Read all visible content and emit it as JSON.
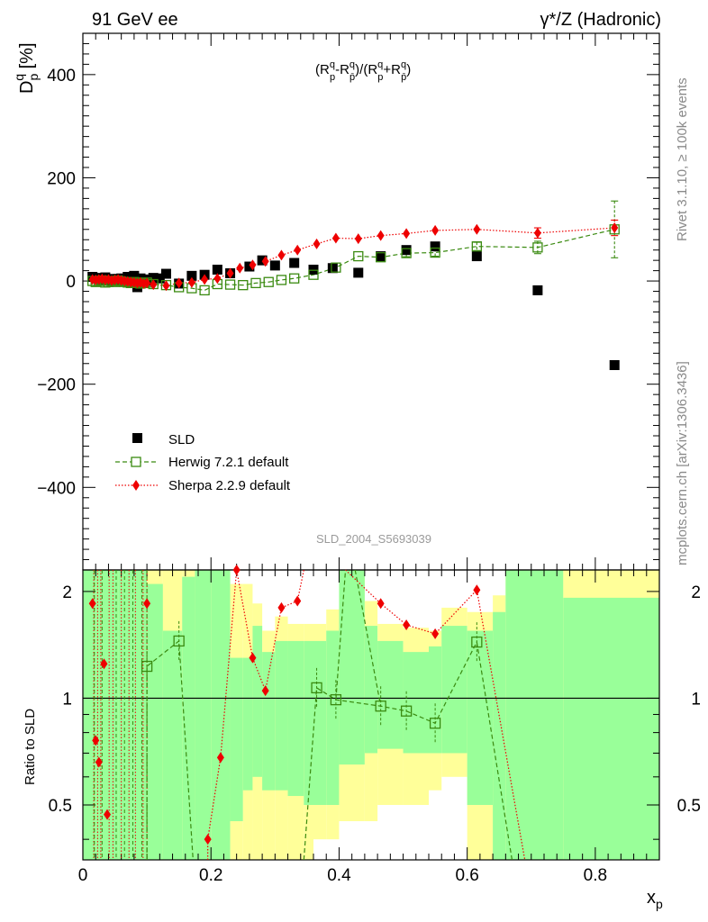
{
  "header": {
    "left": "91 GeV ee",
    "right": "γ*/Z (Hadronic)"
  },
  "side": {
    "rivet": "Rivet 3.1.10, ≥ 100k events",
    "mcplots": "mcplots.cern.ch [arXiv:1306.3436]"
  },
  "chart_data": {
    "type": "scatter",
    "title": "(R_p^q - R_pbar^q)/(R_p^q + R_pbar^q)",
    "xlabel": "x_p",
    "ylabel": "D_p^q [%]",
    "ratio_ylabel": "Ratio to SLD",
    "watermark": "SLD_2004_S5693039",
    "xlim": [
      0,
      0.9
    ],
    "ylim": [
      -560,
      480
    ],
    "ratio_ylim": [
      0.35,
      2.3
    ],
    "xticks": [
      "0",
      "0.2",
      "0.4",
      "0.6",
      "0.8"
    ],
    "yticks": [
      "−400",
      "−200",
      "0",
      "200",
      "400"
    ],
    "ratio_yticks": [
      "0.5",
      "1",
      "2"
    ],
    "legend": {
      "placement": "bottom-left",
      "entries": [
        "SLD",
        "Herwig 7.2.1 default",
        "Sherpa 2.2.9 default"
      ]
    },
    "series": [
      {
        "name": "SLD",
        "color": "#000000",
        "x": [
          0.015,
          0.02,
          0.025,
          0.03,
          0.035,
          0.04,
          0.045,
          0.05,
          0.055,
          0.06,
          0.065,
          0.07,
          0.075,
          0.08,
          0.085,
          0.09,
          0.095,
          0.1,
          0.105,
          0.11,
          0.12,
          0.13,
          0.15,
          0.17,
          0.19,
          0.21,
          0.23,
          0.26,
          0.28,
          0.3,
          0.33,
          0.36,
          0.39,
          0.43,
          0.465,
          0.505,
          0.55,
          0.615,
          0.71,
          0.83
        ],
        "y": [
          8,
          5,
          6,
          3,
          7,
          2,
          4,
          1,
          4,
          5,
          2,
          8,
          6,
          10,
          -12,
          5,
          3,
          2,
          0,
          6,
          5,
          14,
          -5,
          10,
          12,
          22,
          15,
          28,
          40,
          30,
          35,
          22,
          25,
          16,
          48,
          60,
          67,
          48,
          -18,
          -163
        ]
      },
      {
        "name": "Herwig 7.2.1 default",
        "color": "#3a8a10",
        "x": [
          0.015,
          0.02,
          0.025,
          0.03,
          0.035,
          0.04,
          0.045,
          0.05,
          0.055,
          0.06,
          0.065,
          0.07,
          0.075,
          0.08,
          0.085,
          0.09,
          0.095,
          0.1,
          0.11,
          0.13,
          0.15,
          0.17,
          0.19,
          0.21,
          0.23,
          0.25,
          0.27,
          0.29,
          0.31,
          0.33,
          0.36,
          0.395,
          0.43,
          0.465,
          0.505,
          0.55,
          0.615,
          0.71,
          0.83
        ],
        "y": [
          0,
          -2,
          0,
          1,
          -3,
          -2,
          0,
          -2,
          1,
          -1,
          -2,
          -3,
          -4,
          -2,
          -3,
          -5,
          -4,
          -3,
          -6,
          -8,
          -12,
          -14,
          -18,
          -6,
          -7,
          -8,
          -4,
          -2,
          2,
          5,
          12,
          26,
          48,
          46,
          54,
          55,
          67,
          65,
          100
        ],
        "yerr": [
          3,
          3,
          3,
          3,
          3,
          3,
          3,
          3,
          3,
          3,
          3,
          3,
          3,
          3,
          3,
          3,
          3,
          3,
          3,
          3,
          4,
          4,
          4,
          4,
          4,
          4,
          5,
          5,
          5,
          5,
          6,
          6,
          6,
          7,
          7,
          7,
          8,
          12,
          55
        ]
      },
      {
        "name": "Sherpa 2.2.9 default",
        "color": "#ee0000",
        "x": [
          0.015,
          0.02,
          0.025,
          0.03,
          0.035,
          0.04,
          0.045,
          0.05,
          0.055,
          0.06,
          0.065,
          0.07,
          0.075,
          0.08,
          0.085,
          0.09,
          0.095,
          0.1,
          0.11,
          0.13,
          0.15,
          0.17,
          0.19,
          0.21,
          0.23,
          0.245,
          0.265,
          0.285,
          0.31,
          0.335,
          0.365,
          0.395,
          0.43,
          0.465,
          0.505,
          0.55,
          0.615,
          0.71,
          0.83
        ],
        "y": [
          3,
          2,
          3,
          4,
          2,
          3,
          1,
          2,
          3,
          1,
          0,
          -1,
          -2,
          -3,
          -4,
          -3,
          -5,
          -4,
          -7,
          -9,
          -4,
          -3,
          3,
          5,
          15,
          25,
          31,
          38,
          50,
          60,
          72,
          83,
          82,
          88,
          92,
          98,
          100,
          93,
          103
        ],
        "yerr": [
          2,
          2,
          2,
          2,
          2,
          2,
          2,
          2,
          2,
          2,
          2,
          2,
          2,
          2,
          2,
          2,
          2,
          2,
          2,
          2,
          2,
          2,
          2,
          2,
          3,
          3,
          3,
          3,
          3,
          3,
          3,
          4,
          4,
          4,
          4,
          5,
          5,
          10,
          15
        ]
      }
    ],
    "ratio": {
      "herwig_x": [
        0.1,
        0.15,
        0.365,
        0.395,
        0.465,
        0.505,
        0.55,
        0.615
      ],
      "herwig_y": [
        1.23,
        1.45,
        1.07,
        0.99,
        0.95,
        0.92,
        0.85,
        1.44
      ],
      "sherpa_x": [
        0.015,
        0.02,
        0.025,
        0.033,
        0.038,
        0.1,
        0.195,
        0.215,
        0.24,
        0.265,
        0.285,
        0.31,
        0.335,
        0.465,
        0.505,
        0.55,
        0.615
      ],
      "sherpa_y": [
        1.85,
        0.76,
        0.66,
        1.25,
        0.47,
        1.85,
        0.4,
        0.68,
        2.3,
        1.3,
        1.05,
        1.8,
        1.88,
        1.85,
        1.61,
        1.52,
        2.02
      ],
      "bands": [
        {
          "x0": 0.0,
          "x1": 0.02,
          "g": [
            0.35,
            2.3
          ],
          "yl": [
            0.35,
            2.3
          ]
        },
        {
          "x0": 0.02,
          "x1": 0.055,
          "g": [
            0.35,
            2.3
          ],
          "yl": [
            0.35,
            2.3
          ]
        },
        {
          "x0": 0.055,
          "x1": 0.1,
          "g": [
            0.35,
            2.3
          ],
          "yl": [
            0.35,
            2.3
          ]
        },
        {
          "x0": 0.1,
          "x1": 0.125,
          "g": [
            0.35,
            2.1
          ],
          "yl": [
            0.35,
            2.3
          ]
        },
        {
          "x0": 0.125,
          "x1": 0.155,
          "g": [
            0.35,
            1.55
          ],
          "yl": [
            0.35,
            2.3
          ]
        },
        {
          "x0": 0.155,
          "x1": 0.175,
          "g": [
            0.35,
            2.2
          ],
          "yl": [
            0.35,
            2.3
          ]
        },
        {
          "x0": 0.175,
          "x1": 0.2,
          "g": [
            0.35,
            2.3
          ],
          "yl": [
            0.35,
            2.3
          ]
        },
        {
          "x0": 0.2,
          "x1": 0.23,
          "g": [
            0.35,
            2.3
          ],
          "yl": [
            0.35,
            2.3
          ]
        },
        {
          "x0": 0.23,
          "x1": 0.25,
          "g": [
            0.45,
            1.3
          ],
          "yl": [
            0.35,
            2.1
          ]
        },
        {
          "x0": 0.25,
          "x1": 0.265,
          "g": [
            0.55,
            1.3
          ],
          "yl": [
            0.35,
            2.1
          ]
        },
        {
          "x0": 0.265,
          "x1": 0.28,
          "g": [
            0.6,
            1.6
          ],
          "yl": [
            0.35,
            1.85
          ]
        },
        {
          "x0": 0.28,
          "x1": 0.3,
          "g": [
            0.55,
            1.35
          ],
          "yl": [
            0.35,
            1.55
          ]
        },
        {
          "x0": 0.3,
          "x1": 0.32,
          "g": [
            0.55,
            1.45
          ],
          "yl": [
            0.35,
            1.7
          ]
        },
        {
          "x0": 0.32,
          "x1": 0.345,
          "g": [
            0.53,
            1.45
          ],
          "yl": [
            0.35,
            1.62
          ]
        },
        {
          "x0": 0.345,
          "x1": 0.36,
          "g": [
            0.5,
            1.45
          ],
          "yl": [
            0.35,
            1.62
          ]
        },
        {
          "x0": 0.36,
          "x1": 0.38,
          "g": [
            0.5,
            1.45
          ],
          "yl": [
            0.4,
            1.62
          ]
        },
        {
          "x0": 0.38,
          "x1": 0.4,
          "g": [
            0.5,
            1.55
          ],
          "yl": [
            0.4,
            1.78
          ]
        },
        {
          "x0": 0.4,
          "x1": 0.44,
          "g": [
            0.65,
            2.3
          ],
          "yl": [
            0.45,
            2.3
          ]
        },
        {
          "x0": 0.44,
          "x1": 0.46,
          "g": [
            0.7,
            1.6
          ],
          "yl": [
            0.45,
            1.88
          ]
        },
        {
          "x0": 0.46,
          "x1": 0.5,
          "g": [
            0.72,
            1.45
          ],
          "yl": [
            0.5,
            1.62
          ]
        },
        {
          "x0": 0.5,
          "x1": 0.54,
          "g": [
            0.7,
            1.35
          ],
          "yl": [
            0.5,
            1.58
          ]
        },
        {
          "x0": 0.54,
          "x1": 0.56,
          "g": [
            0.7,
            1.4
          ],
          "yl": [
            0.55,
            1.55
          ]
        },
        {
          "x0": 0.56,
          "x1": 0.6,
          "g": [
            0.7,
            1.6
          ],
          "yl": [
            0.6,
            1.8
          ]
        },
        {
          "x0": 0.6,
          "x1": 0.64,
          "g": [
            0.5,
            1.55
          ],
          "yl": [
            0.35,
            1.75
          ]
        },
        {
          "x0": 0.64,
          "x1": 0.66,
          "g": [
            0.35,
            1.75
          ],
          "yl": [
            0.35,
            1.95
          ]
        },
        {
          "x0": 0.66,
          "x1": 0.75,
          "g": [
            0.35,
            2.3
          ],
          "yl": [
            0.35,
            2.3
          ]
        },
        {
          "x0": 0.75,
          "x1": 0.9,
          "g": [
            0.35,
            1.92
          ],
          "yl": [
            0.35,
            2.3
          ]
        }
      ]
    }
  }
}
